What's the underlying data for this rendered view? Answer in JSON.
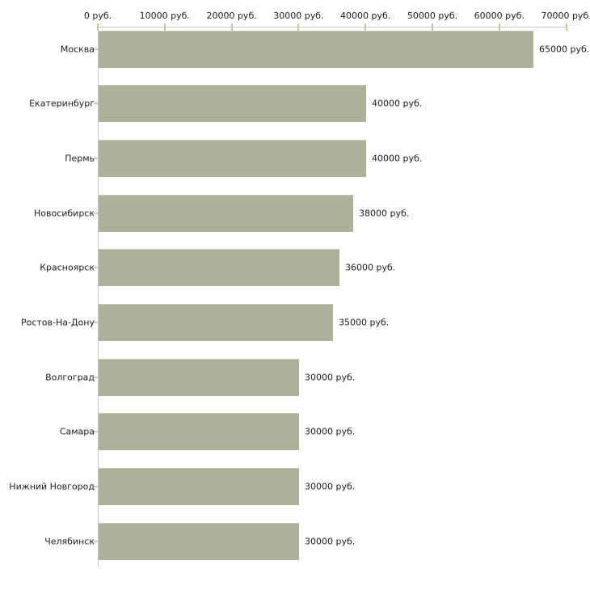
{
  "chart_data": {
    "type": "bar",
    "orientation": "horizontal",
    "title": "",
    "xlabel": "",
    "ylabel": "",
    "unit": "руб.",
    "xlim": [
      0,
      70000
    ],
    "grid": false,
    "legend": false,
    "axis_position": "top",
    "categories": [
      "Москва",
      "Екатеринбург",
      "Пермь",
      "Новосибирск",
      "Красноярск",
      "Ростов-На-Дону",
      "Волгоград",
      "Самара",
      "Нижний Новгород",
      "Челябинск"
    ],
    "values": [
      65000,
      40000,
      40000,
      38000,
      36000,
      35000,
      30000,
      30000,
      30000,
      30000
    ],
    "value_labels": [
      "65000 руб.",
      "40000 руб.",
      "40000 руб.",
      "38000 руб.",
      "36000 руб.",
      "35000 руб.",
      "30000 руб.",
      "30000 руб.",
      "30000 руб.",
      "30000 руб."
    ],
    "axis_tick_values": [
      0,
      10000,
      20000,
      30000,
      40000,
      50000,
      60000,
      70000
    ],
    "axis_tick_labels": [
      "0 руб.",
      "10000 руб.",
      "20000 руб.",
      "30000 руб.",
      "40000 руб.",
      "50000 руб.",
      "60000 руб.",
      "70000 руб."
    ],
    "colors": {
      "bar": "#acb199",
      "bar_top_edge": "#c3c8b1",
      "axis_line": "#c6c6c6",
      "axis_tick": "#c6c69c",
      "category_tick": "#cfcfad",
      "text": "#1c1c1c",
      "background": "#ffffff"
    }
  }
}
